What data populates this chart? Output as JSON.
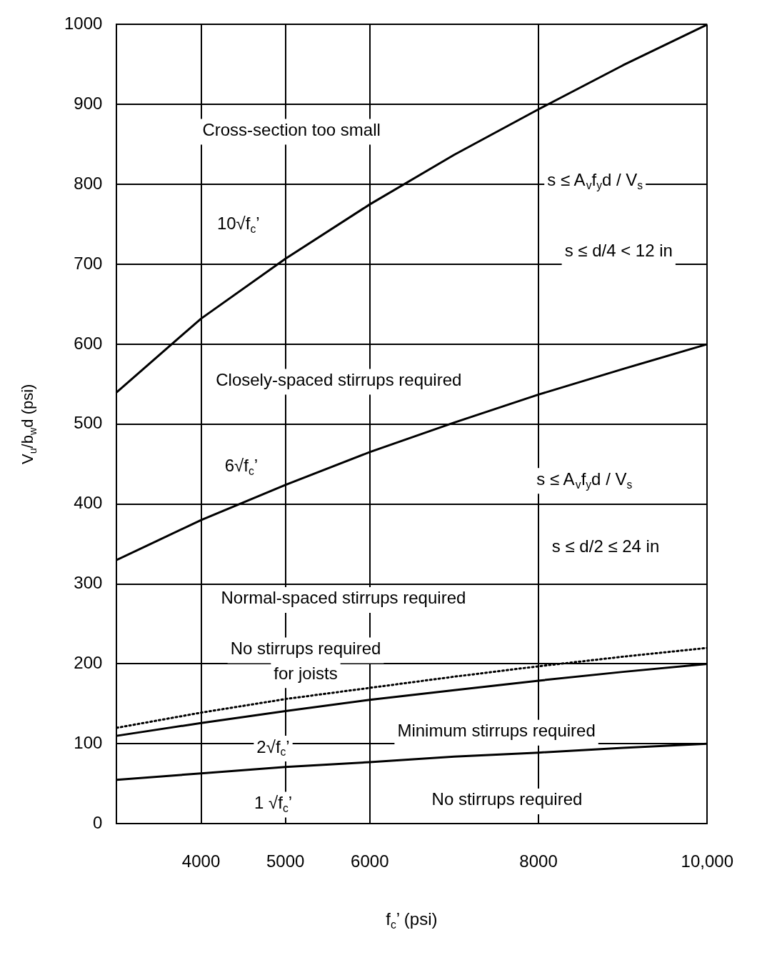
{
  "chart_data": {
    "type": "line",
    "xlabel": "f$_{c}$’ (psi)",
    "ylabel": "V$_{u}$/b$_{w}$d (psi)",
    "x": [
      3000,
      4000,
      5000,
      6000,
      7000,
      8000,
      9000,
      10000
    ],
    "series": [
      {
        "color": "#000000",
        "values": [
          540,
          632,
          707,
          775,
          837,
          894,
          949,
          1000
        ]
      },
      {
        "color": "#000000",
        "values": [
          330,
          380,
          424,
          465,
          502,
          537,
          569,
          600
        ]
      },
      {
        "color": "#000000",
        "line_style": "dotted",
        "values": [
          120,
          139,
          156,
          170,
          184,
          197,
          209,
          220
        ]
      },
      {
        "color": "#000000",
        "values": [
          110,
          126,
          141,
          155,
          167,
          179,
          190,
          200
        ]
      },
      {
        "color": "#000000",
        "values": [
          55,
          63,
          71,
          77,
          84,
          89,
          95,
          100
        ]
      }
    ],
    "xlim": [
      3000,
      10000
    ],
    "xticks": [
      4000,
      5000,
      6000,
      8000,
      {
        "value": 10000,
        "label": "10,000"
      }
    ],
    "ylim": [
      0,
      1000
    ],
    "yticks": [
      0,
      100,
      200,
      300,
      400,
      500,
      600,
      700,
      800,
      900,
      1000
    ],
    "grid": true,
    "legend": false,
    "marker": "none",
    "line_style": "solid",
    "annotations": [
      "Cross-section too small",
      "Closely-spaced stirrups required",
      "Normal-spaced stirrups required",
      "No stirrups required",
      "for joists",
      "Minimum stirrups required",
      "No stirrups required",
      "s ≤ A$_{v}$f$_{y}$d / V$_{s}$",
      "s ≤ d/4 < 12 in",
      "s ≤ A$_{v}$f$_{y}$d / V$_{s}$",
      "s ≤ d/2 ≤ 24 in",
      "10√f$_{c}$’",
      "6√f$_{c}$’",
      "2√f$_{c}$’",
      "1 √f$_{c}$’"
    ]
  }
}
